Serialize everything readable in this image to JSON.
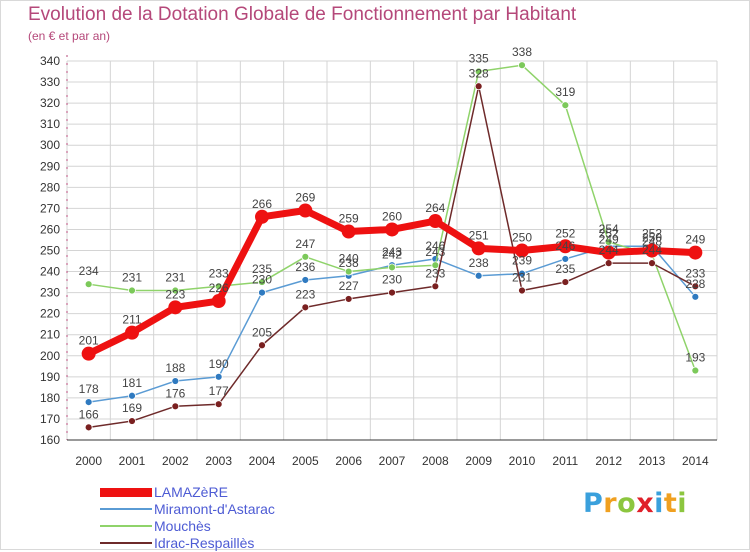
{
  "header": {
    "title": "Evolution de la Dotation Globale de Fonctionnement par Habitant",
    "subtitle": "(en € et par an)"
  },
  "brand": {
    "letters": [
      "P",
      "r",
      "o",
      "x",
      "i",
      "t",
      "i"
    ],
    "colors": [
      "#3aa0dc",
      "#f0a020",
      "#8cc63f",
      "#e0202a",
      "#3aa0dc",
      "#f0a020",
      "#8cc63f"
    ]
  },
  "chart_data": {
    "type": "line",
    "title": "Evolution de la Dotation Globale de Fonctionnement par Habitant",
    "subtitle": "(en € et par an)",
    "xlabel": "",
    "ylabel": "",
    "x": [
      "2000",
      "2001",
      "2002",
      "2003",
      "2004",
      "2005",
      "2006",
      "2007",
      "2008",
      "2009",
      "2010",
      "2011",
      "2012",
      "2013",
      "2014"
    ],
    "ylim": [
      160,
      340
    ],
    "yticks": [
      160,
      170,
      180,
      190,
      200,
      210,
      220,
      230,
      240,
      250,
      260,
      270,
      280,
      290,
      300,
      310,
      320,
      330,
      340
    ],
    "grid": true,
    "legend": "bottom-left",
    "series": [
      {
        "name": "Miramont-d'Astarac",
        "color": "#5a9bd4",
        "marker": "#2f7ac0",
        "values": [
          178,
          181,
          188,
          190,
          230,
          236,
          238,
          243,
          246,
          238,
          239,
          246,
          252,
          252,
          228
        ]
      },
      {
        "name": "Mouchès",
        "color": "#8fd36a",
        "marker": "#7cc95a",
        "values": [
          234,
          231,
          231,
          233,
          235,
          247,
          240,
          242,
          243,
          335,
          338,
          319,
          254,
          248,
          193
        ]
      },
      {
        "name": "Idrac-Respaillès",
        "color": "#6e2a2a",
        "marker": "#7a2020",
        "values": [
          166,
          169,
          176,
          177,
          205,
          223,
          227,
          230,
          233,
          328,
          231,
          235,
          244,
          244,
          233
        ]
      },
      {
        "name": "LAMAZèRE",
        "color": "#ee1111",
        "marker": "#ee1111",
        "values": [
          201,
          211,
          223,
          226,
          266,
          269,
          259,
          260,
          264,
          251,
          250,
          252,
          249,
          250,
          249
        ]
      }
    ],
    "labels": [
      [
        "178",
        "181",
        "188",
        "190",
        "230",
        "236",
        "238",
        "243",
        "246",
        "238",
        "239",
        "246",
        "252",
        "252",
        "228"
      ],
      [
        "234",
        "231",
        "231",
        "233",
        "235",
        "247",
        "240",
        "242",
        "243",
        "335",
        "338",
        "319",
        "254",
        "248",
        "193"
      ],
      [
        "166",
        "169",
        "176",
        "177",
        "205",
        "223",
        "227",
        "230",
        "233",
        "328",
        "231",
        "235",
        "244",
        "244",
        "233"
      ],
      [
        "201",
        "211",
        "223",
        "226",
        "266",
        "269",
        "259",
        "260",
        "264",
        "251",
        "250",
        "252",
        "249",
        "250",
        "249"
      ]
    ]
  },
  "legend": [
    {
      "label": "LAMAZèRE",
      "color": "#ee1111"
    },
    {
      "label": "Miramont-d'Astarac",
      "color": "#5a9bd4"
    },
    {
      "label": "Mouchès",
      "color": "#8fd36a"
    },
    {
      "label": "Idrac-Respaillès",
      "color": "#6e2a2a"
    }
  ]
}
